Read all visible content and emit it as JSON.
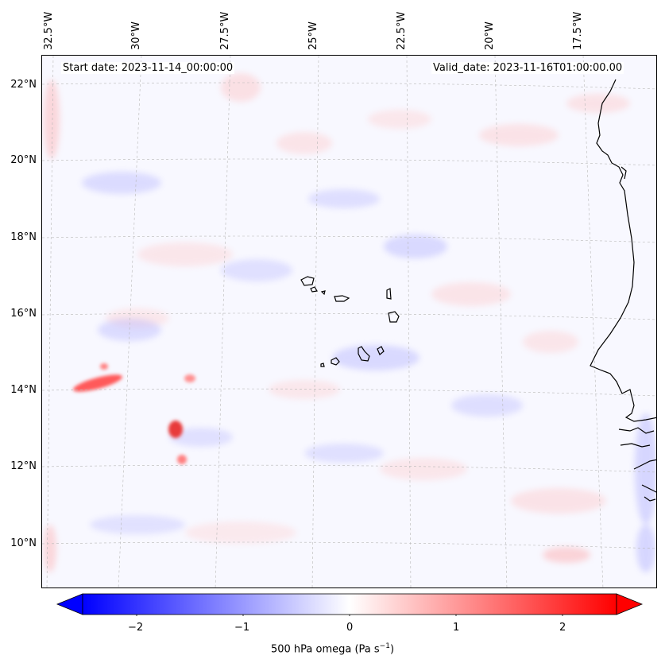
{
  "map": {
    "start_date": "Start date: 2023-11-14_00:00:00",
    "valid_date": "Valid_date: 2023-11-16T01:00:00.00",
    "lon_labels": [
      "32.5°W",
      "30°W",
      "27.5°W",
      "25°W",
      "22.5°W",
      "20°W",
      "17.5°W"
    ],
    "lat_labels": [
      "22°N",
      "20°N",
      "18°N",
      "16°N",
      "14°N",
      "12°N",
      "10°N"
    ],
    "colors": {
      "background": "#f8f8ff",
      "positive": "#ff0000",
      "negative": "#0000ff",
      "coastline": "#000000",
      "grid": "#b0b0b0"
    }
  },
  "colorbar": {
    "tick_labels": [
      "−2",
      "−1",
      "0",
      "1",
      "2"
    ],
    "label": "500 hPa omega (Pa s",
    "label_sup": "−1",
    "label_end": ")",
    "min": -2.5,
    "max": 2.5
  }
}
